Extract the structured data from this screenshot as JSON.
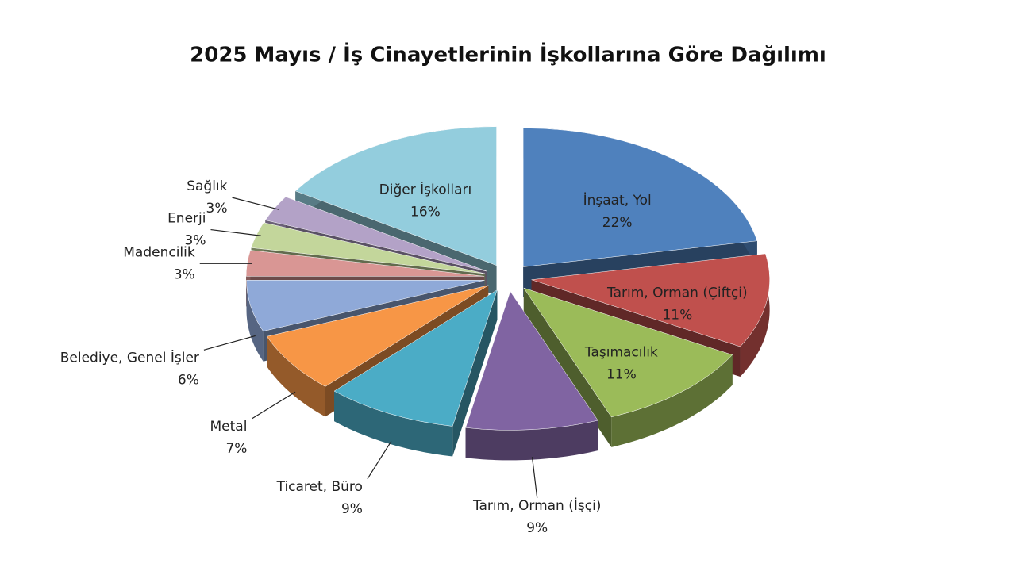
{
  "chart_data": {
    "type": "pie",
    "title": "2025 Mayıs / İş Cinayetlerinin İşkollarına Göre Dağılımı",
    "categories": [
      "İnşaat, Yol",
      "Tarım, Orman (Çiftçi)",
      "Taşımacılık",
      "Tarım, Orman (İşçi)",
      "Ticaret, Büro",
      "Metal",
      "Belediye, Genel İşler",
      "Madencilik",
      "Enerji",
      "Sağlık",
      "Diğer İşkolları"
    ],
    "values": [
      22,
      11,
      11,
      9,
      9,
      7,
      6,
      3,
      3,
      3,
      16
    ],
    "value_labels": [
      "22%",
      "11%",
      "11%",
      "9%",
      "9%",
      "7%",
      "6%",
      "3%",
      "3%",
      "3%",
      "16%"
    ],
    "colors": [
      "#4f81bd",
      "#c0504d",
      "#9bbb59",
      "#8064a2",
      "#4bacc6",
      "#f79646",
      "#8fa9d8",
      "#d99694",
      "#c3d69b",
      "#b3a2c7",
      "#93cddd"
    ]
  }
}
